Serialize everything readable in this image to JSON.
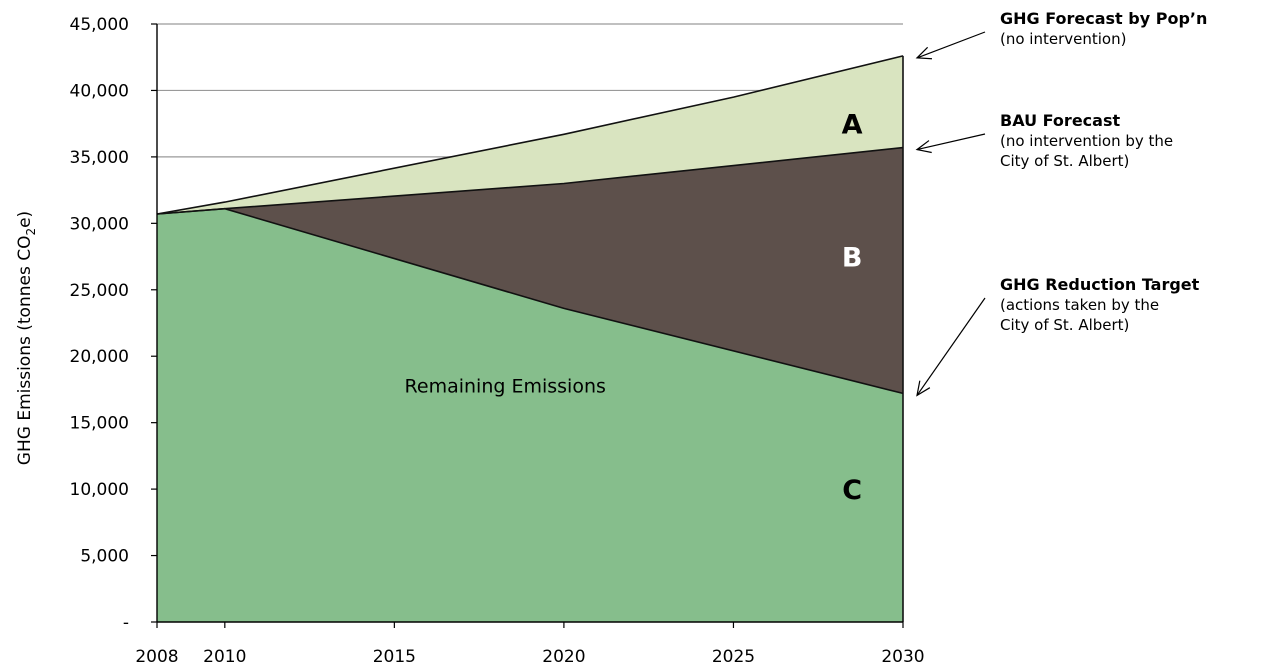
{
  "chart_data": {
    "type": "area",
    "xlabel": "",
    "ylabel": "GHG Emissions  (tonnes CO",
    "ylabel_sub": "2",
    "ylabel_tail": "e)",
    "xlim": [
      2008,
      2030
    ],
    "ylim": [
      0,
      45000
    ],
    "x_ticks": [
      "2008",
      "2010",
      "2015",
      "2020",
      "2025",
      "2030"
    ],
    "x_tick_values": [
      2008,
      2010,
      2015,
      2020,
      2025,
      2030
    ],
    "y_ticks": [
      "-",
      "5,000",
      "10,000",
      "15,000",
      "20,000",
      "25,000",
      "30,000",
      "35,000",
      "40,000",
      "45,000"
    ],
    "y_tick_values": [
      0,
      5000,
      10000,
      15000,
      20000,
      25000,
      30000,
      35000,
      40000,
      45000
    ],
    "grid": "horizontal",
    "series": [
      {
        "name": "GHG Forecast by Pop’n",
        "color": "#d9e4c0",
        "x": [
          2008,
          2010,
          2020,
          2025,
          2030
        ],
        "values": [
          30700,
          31600,
          36700,
          39500,
          42600
        ]
      },
      {
        "name": "BAU Forecast",
        "color": "#5d504b",
        "x": [
          2008,
          2010,
          2020,
          2030
        ],
        "values": [
          30700,
          31100,
          33000,
          35700
        ]
      },
      {
        "name": "GHG Reduction Target",
        "color": "#86be8c",
        "x": [
          2008,
          2010,
          2020,
          2030
        ],
        "values": [
          30700,
          31100,
          23600,
          17200
        ]
      }
    ],
    "region_labels": [
      {
        "text": "A",
        "x": 2028.5,
        "y": 37500
      },
      {
        "text": "B",
        "x": 2028.5,
        "y": 27500
      },
      {
        "text": "C",
        "x": 2028.5,
        "y": 10000
      }
    ],
    "inline_label": {
      "text": "Remaining Emissions",
      "x": 2015.3,
      "y": 17800
    },
    "annotations": [
      {
        "title": "GHG Forecast by Pop’n",
        "lines": [
          "(no intervention)"
        ],
        "target_y": 42600
      },
      {
        "title": "BAU Forecast",
        "lines": [
          "(no intervention by the",
          "City of St. Albert)"
        ],
        "target_y": 35700
      },
      {
        "title": "GHG Reduction Target",
        "lines": [
          "(actions taken by the",
          "City of St. Albert)"
        ],
        "target_y": 17200
      }
    ]
  }
}
